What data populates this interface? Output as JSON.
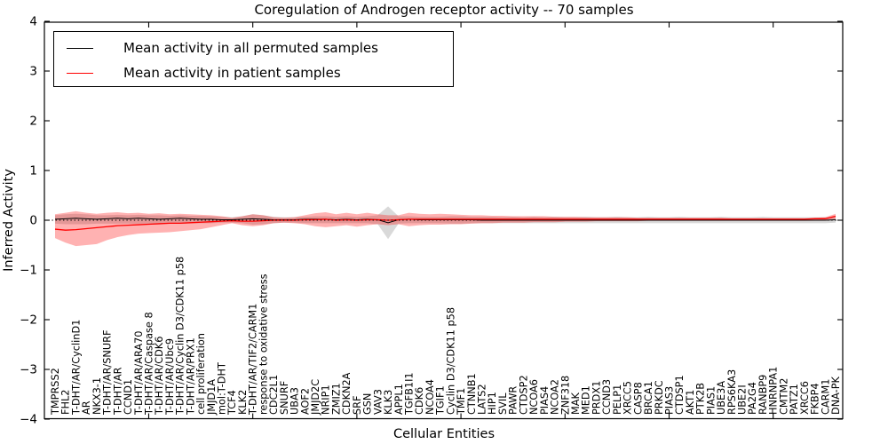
{
  "figure": {
    "title": "Coregulation of Androgen receptor activity -- 70 samples",
    "xlabel": "Cellular Entities",
    "ylabel": "Inferred Activity"
  },
  "legend": {
    "items": [
      {
        "label": "Mean activity in all permuted samples",
        "color": "#000000"
      },
      {
        "label": "Mean activity in patient samples",
        "color": "#ff0000"
      }
    ]
  },
  "chart_data": {
    "type": "line",
    "title": "Coregulation of Androgen receptor activity -- 70 samples",
    "xlabel": "Cellular Entities",
    "ylabel": "Inferred Activity",
    "ylim": [
      -4,
      4
    ],
    "yticks": [
      -4,
      -3,
      -2,
      -1,
      0,
      1,
      2,
      3,
      4
    ],
    "x_major_tick_indices": [
      9,
      19,
      29,
      39,
      49,
      59,
      69
    ],
    "grid": false,
    "legend_position": "upper left",
    "zero_line": {
      "y": 0,
      "style": "dotted",
      "color": "#000000"
    },
    "categories": [
      "TMPRSS2",
      "FHL2",
      "T-DHT/AR/CyclinD1",
      "AR",
      "NKX3-1",
      "T-DHT/AR/SNURF",
      "T-DHT/AR",
      "CCND1",
      "T-DHT/AR/ARA70",
      "T-DHT/AR/Caspase 8",
      "T-DHT/AR/CDK6",
      "T-DHT/AR/Ubc9",
      "T-DHT/AR/Cyclin D3/CDK11 p58",
      "T-DHT/AR/PRX1",
      "cell proliferation",
      "JMJD1A",
      "mol:T-DHT",
      "TCF4",
      "KLK2",
      "T-DHT/AR/TIF2/CARM1",
      "response to oxidative stress",
      "CDC2L1",
      "SNURF",
      "UBA3",
      "AOF2",
      "JMJD2C",
      "NRIP1",
      "ZMIZ1",
      "CDKN2A",
      "SRF",
      "GSN",
      "VAV3",
      "KLK3",
      "APPL1",
      "TGFB1I1",
      "CDK6",
      "NCOA4",
      "TGIF1",
      "Cyclin D3/CDK11 p58",
      "TMF1",
      "CTNNB1",
      "LATS2",
      "HIP1",
      "SVIL",
      "PAWR",
      "CTDSP2",
      "NCOA6",
      "PIAS4",
      "NCOA2",
      "ZNF318",
      "MAK",
      "MED1",
      "PRDX1",
      "CCND3",
      "PELP1",
      "XRCC5",
      "CASP8",
      "BRCA1",
      "PRKDC",
      "PIAS3",
      "CTDSP1",
      "AKT1",
      "PTK2B",
      "PIAS1",
      "UBE3A",
      "RPS6KA3",
      "UBE2I",
      "PA2G4",
      "RANBP9",
      "HNRNPA1",
      "CMTM2",
      "PATZ1",
      "XRCC6",
      "FKBP4",
      "CARM1",
      "DNA-PK"
    ],
    "series": [
      {
        "name": "Mean activity in all permuted samples",
        "color": "#000000",
        "band_fill": "#000000",
        "band_opacity": 0.15,
        "line_width": 1,
        "mean": [
          0.02,
          0.03,
          0.04,
          0.03,
          0.02,
          0.03,
          0.04,
          0.03,
          0.04,
          0.03,
          0.02,
          0.03,
          0.04,
          0.03,
          0.02,
          0.02,
          0.01,
          0.01,
          0.02,
          0.03,
          0.02,
          0.01,
          0.01,
          0.01,
          0.02,
          0.02,
          0.02,
          0.01,
          0.02,
          0.01,
          0.02,
          0.01,
          -0.05,
          0.01,
          0.02,
          0.01,
          0.01,
          0.01,
          0.01,
          0.01,
          0.01,
          0,
          0,
          0,
          0,
          0,
          0,
          0,
          0,
          0,
          0,
          0,
          0,
          0,
          0,
          0,
          0,
          0,
          0,
          0,
          0,
          0,
          0,
          0,
          0,
          0,
          0,
          0,
          0,
          0,
          0,
          0,
          0,
          0,
          0,
          0.01
        ],
        "upper": [
          0.1,
          0.12,
          0.13,
          0.12,
          0.1,
          0.1,
          0.11,
          0.1,
          0.11,
          0.1,
          0.1,
          0.09,
          0.1,
          0.09,
          0.09,
          0.08,
          0.07,
          0.06,
          0.08,
          0.12,
          0.1,
          0.07,
          0.06,
          0.06,
          0.07,
          0.08,
          0.08,
          0.07,
          0.08,
          0.07,
          0.08,
          0.1,
          0.28,
          0.08,
          0.08,
          0.07,
          0.07,
          0.07,
          0.08,
          0.08,
          0.07,
          0.07,
          0.07,
          0.06,
          0.07,
          0.06,
          0.07,
          0.06,
          0.07,
          0.06,
          0.06,
          0.07,
          0.06,
          0.06,
          0.07,
          0.06,
          0.06,
          0.07,
          0.06,
          0.06,
          0.07,
          0.06,
          0.06,
          0.06,
          0.07,
          0.06,
          0.06,
          0.06,
          0.07,
          0.06,
          0.06,
          0.06,
          0.06,
          0.06,
          0.06,
          0.06
        ],
        "lower": [
          -0.07,
          -0.08,
          -0.08,
          -0.08,
          -0.07,
          -0.07,
          -0.07,
          -0.07,
          -0.07,
          -0.07,
          -0.07,
          -0.06,
          -0.07,
          -0.06,
          -0.06,
          -0.06,
          -0.05,
          -0.05,
          -0.06,
          -0.09,
          -0.08,
          -0.06,
          -0.05,
          -0.05,
          -0.06,
          -0.06,
          -0.06,
          -0.06,
          -0.06,
          -0.06,
          -0.06,
          -0.08,
          -0.38,
          -0.07,
          -0.06,
          -0.06,
          -0.06,
          -0.06,
          -0.07,
          -0.07,
          -0.06,
          -0.06,
          -0.06,
          -0.06,
          -0.06,
          -0.06,
          -0.06,
          -0.06,
          -0.06,
          -0.06,
          -0.06,
          -0.06,
          -0.06,
          -0.06,
          -0.06,
          -0.06,
          -0.06,
          -0.06,
          -0.06,
          -0.06,
          -0.06,
          -0.06,
          -0.06,
          -0.06,
          -0.06,
          -0.06,
          -0.06,
          -0.06,
          -0.06,
          -0.06,
          -0.06,
          -0.06,
          -0.06,
          -0.06,
          -0.06,
          -0.05
        ]
      },
      {
        "name": "Mean activity in patient samples",
        "color": "#ff0000",
        "band_fill": "#ff0000",
        "band_opacity": 0.3,
        "line_width": 1.3,
        "mean": [
          -0.18,
          -0.2,
          -0.19,
          -0.17,
          -0.15,
          -0.13,
          -0.11,
          -0.1,
          -0.09,
          -0.08,
          -0.07,
          -0.06,
          -0.06,
          -0.05,
          -0.04,
          -0.03,
          -0.02,
          -0.01,
          -0.02,
          -0.02,
          -0.01,
          0,
          0,
          0,
          0.01,
          0.01,
          0.02,
          0,
          0.01,
          0,
          0.01,
          0.01,
          0,
          0.01,
          0.02,
          0.02,
          0.02,
          0.02,
          0.02,
          0.02,
          0.02,
          0.02,
          0.02,
          0.02,
          0.02,
          0.02,
          0.02,
          0.02,
          0.02,
          0.02,
          0.02,
          0.02,
          0.02,
          0.02,
          0.02,
          0.02,
          0.02,
          0.02,
          0.02,
          0.02,
          0.02,
          0.02,
          0.02,
          0.02,
          0.02,
          0.02,
          0.02,
          0.02,
          0.02,
          0.02,
          0.02,
          0.02,
          0.02,
          0.03,
          0.03,
          0.08
        ],
        "upper": [
          0.12,
          0.15,
          0.18,
          0.15,
          0.13,
          0.15,
          0.16,
          0.14,
          0.15,
          0.13,
          0.14,
          0.12,
          0.13,
          0.12,
          0.11,
          0.1,
          0.08,
          0.05,
          0.08,
          0.12,
          0.1,
          0.06,
          0.05,
          0.06,
          0.1,
          0.14,
          0.16,
          0.12,
          0.15,
          0.12,
          0.15,
          0.12,
          0.1,
          0.1,
          0.15,
          0.13,
          0.12,
          0.13,
          0.12,
          0.11,
          0.1,
          0.1,
          0.09,
          0.09,
          0.08,
          0.08,
          0.08,
          0.08,
          0.07,
          0.07,
          0.07,
          0.06,
          0.06,
          0.06,
          0.06,
          0.06,
          0.05,
          0.05,
          0.05,
          0.05,
          0.05,
          0.05,
          0.05,
          0.05,
          0.05,
          0.04,
          0.04,
          0.04,
          0.04,
          0.04,
          0.04,
          0.04,
          0.04,
          0.05,
          0.06,
          0.13
        ],
        "lower": [
          -0.36,
          -0.45,
          -0.52,
          -0.5,
          -0.48,
          -0.4,
          -0.34,
          -0.3,
          -0.27,
          -0.26,
          -0.25,
          -0.24,
          -0.22,
          -0.2,
          -0.18,
          -0.14,
          -0.1,
          -0.06,
          -0.1,
          -0.12,
          -0.1,
          -0.06,
          -0.05,
          -0.06,
          -0.08,
          -0.12,
          -0.14,
          -0.12,
          -0.1,
          -0.13,
          -0.1,
          -0.08,
          -0.1,
          -0.08,
          -0.12,
          -0.1,
          -0.09,
          -0.09,
          -0.08,
          -0.08,
          -0.07,
          -0.06,
          -0.06,
          -0.05,
          -0.05,
          -0.05,
          -0.04,
          -0.04,
          -0.04,
          -0.03,
          -0.03,
          -0.03,
          -0.02,
          -0.02,
          -0.02,
          -0.02,
          -0.02,
          -0.01,
          -0.01,
          -0.01,
          -0.01,
          -0.01,
          -0.01,
          -0.01,
          -0.01,
          0,
          0,
          0,
          0,
          0,
          0,
          0,
          0,
          0,
          0.01,
          0.02
        ]
      }
    ]
  }
}
